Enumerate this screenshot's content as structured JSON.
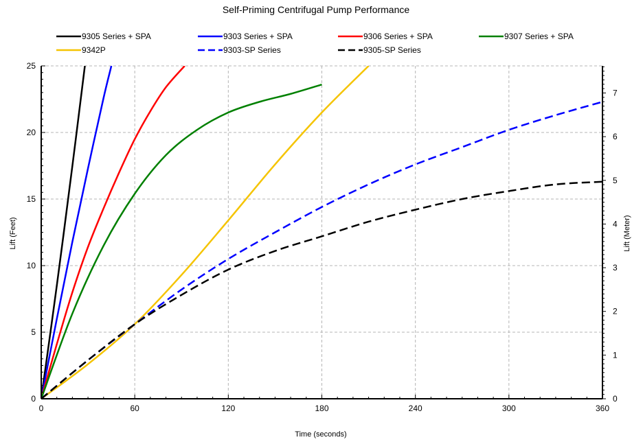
{
  "chart_data": {
    "type": "line",
    "title": "Self-Priming Centrifugal Pump Performance",
    "xlabel": "Time (seconds)",
    "ylabel": "Lift (Feet)",
    "ylabel_right": "Lift (Meter)",
    "xlim": [
      0,
      360
    ],
    "ylim": [
      0,
      25
    ],
    "ylim_right": [
      0,
      7.62
    ],
    "x_ticks": [
      0,
      60,
      120,
      180,
      240,
      300,
      360
    ],
    "y_ticks": [
      0,
      5,
      10,
      15,
      20,
      25
    ],
    "y_ticks_right": [
      0,
      1,
      2,
      3,
      4,
      5,
      6,
      7
    ],
    "grid": true,
    "legend_position": "top",
    "series": [
      {
        "name": "9305 Series + SPA",
        "color": "#000000",
        "dash": "solid",
        "x": [
          0,
          10,
          20,
          28
        ],
        "y": [
          0,
          8.5,
          17.5,
          25
        ]
      },
      {
        "name": "9303 Series + SPA",
        "color": "#0000ff",
        "dash": "solid",
        "x": [
          0,
          10,
          20,
          30,
          40,
          45
        ],
        "y": [
          0,
          6,
          11.8,
          17.3,
          22.6,
          25
        ]
      },
      {
        "name": "9306 Series + SPA",
        "color": "#ff0000",
        "dash": "solid",
        "x": [
          0,
          10,
          20,
          30,
          40,
          50,
          60,
          70,
          80,
          92
        ],
        "y": [
          0,
          4.1,
          8,
          11.4,
          14.3,
          17,
          19.5,
          21.6,
          23.4,
          25
        ]
      },
      {
        "name": "9307 Series + SPA",
        "color": "#008000",
        "dash": "solid",
        "x": [
          0,
          20,
          40,
          60,
          80,
          100,
          120,
          140,
          160,
          180
        ],
        "y": [
          0,
          6.4,
          11.5,
          15.4,
          18.3,
          20.2,
          21.5,
          22.3,
          22.9,
          23.6
        ]
      },
      {
        "name": "9342P",
        "color": "#f5c400",
        "dash": "solid",
        "x": [
          0,
          30,
          60,
          90,
          120,
          150,
          180,
          210
        ],
        "y": [
          0,
          2.6,
          5.6,
          9.3,
          13.4,
          17.6,
          21.5,
          25
        ]
      },
      {
        "name": "9303-SP Series",
        "color": "#0000ff",
        "dash": "dashed",
        "x": [
          0,
          30,
          60,
          90,
          120,
          150,
          180,
          210,
          240,
          270,
          300,
          330,
          360
        ],
        "y": [
          0,
          2.9,
          5.6,
          8.2,
          10.5,
          12.5,
          14.4,
          16.1,
          17.6,
          18.9,
          20.2,
          21.3,
          22.3
        ]
      },
      {
        "name": "9305-SP Series",
        "color": "#000000",
        "dash": "dashed",
        "x": [
          0,
          30,
          60,
          90,
          120,
          150,
          180,
          210,
          240,
          270,
          300,
          330,
          360
        ],
        "y": [
          0,
          2.9,
          5.6,
          7.8,
          9.7,
          11.1,
          12.2,
          13.3,
          14.2,
          15,
          15.6,
          16.1,
          16.3
        ]
      }
    ]
  }
}
